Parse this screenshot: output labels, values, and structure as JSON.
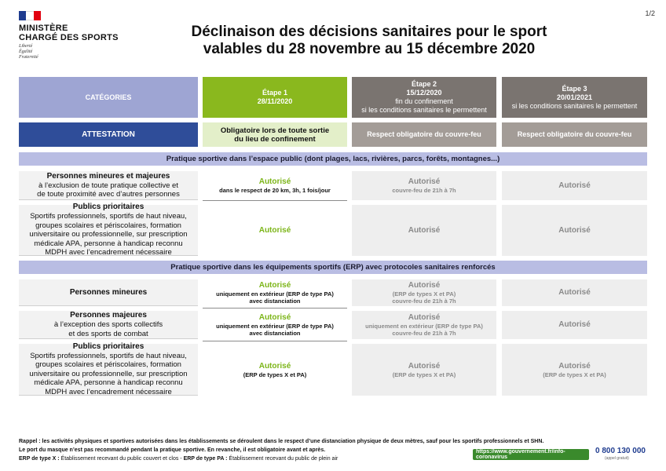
{
  "logo": {
    "line1": "MINISTÈRE",
    "line2": "CHARGÉ DES SPORTS",
    "motto": [
      "Liberté",
      "Égalité",
      "Fraternité"
    ]
  },
  "page_number": "1/2",
  "title": {
    "line1": "Déclinaison des décisions sanitaires pour le sport",
    "line2": "valables du 28 novembre au 15 décembre 2020"
  },
  "colors": {
    "categories_bg": "#9ea5d3",
    "etape1_bg": "#8ab81e",
    "etape_grey_bg": "#7a7470",
    "attestation_bg": "#2f4d99",
    "attestation1_bg": "#e3efc9",
    "attestation_grey_bg": "#a39c97"
  },
  "header": {
    "categories": "CATÉGORIES",
    "etape1": {
      "title": "Étape 1",
      "date": "28/11/2020"
    },
    "etape2": {
      "title": "Étape 2",
      "date": "15/12/2020",
      "line1": "fin du confinement",
      "line2": "si les conditions sanitaires le permettent"
    },
    "etape3": {
      "title": "Étape 3",
      "date": "20/01/2021",
      "line1": "si les conditions sanitaires le permettent"
    }
  },
  "attestation": {
    "label": "ATTESTATION",
    "etape1": [
      "Obligatoire lors de toute sortie",
      "du lieu de confinement"
    ],
    "etape2": "Respect obligatoire du couvre-feu",
    "etape3": "Respect obligatoire du couvre-feu"
  },
  "section1": {
    "title": "Pratique sportive dans l’espace public (dont plages, lacs, rivières, parcs, forêts, montagnes...)",
    "rows": [
      {
        "title": "Personnes mineures et majeures",
        "desc": [
          "à l’exclusion de toute pratique collective et",
          "de toute proximité avec d’autres personnes"
        ],
        "e1": {
          "status": "Autorisé",
          "notes": [
            "dans le respect de 20 km, 3h, 1 fois/jour"
          ]
        },
        "e2": {
          "status": "Autorisé",
          "notes": [
            "couvre-feu de 21h à 7h"
          ]
        },
        "e3": {
          "status": "Autorisé",
          "notes": []
        }
      },
      {
        "title": "Publics prioritaires",
        "desc": [
          "Sportifs professionnels, sportifs de haut niveau,",
          "groupes scolaires et périscolaires, formation",
          "universitaire ou professionnelle, sur prescription",
          "médicale APA, personne à handicap reconnu",
          "MDPH avec l’encadrement nécessaire"
        ],
        "e1": {
          "status": "Autorisé",
          "notes": []
        },
        "e2": {
          "status": "Autorisé",
          "notes": []
        },
        "e3": {
          "status": "Autorisé",
          "notes": []
        }
      }
    ]
  },
  "section2": {
    "title": "Pratique sportive dans les équipements sportifs (ERP) avec protocoles sanitaires renforcés",
    "rows": [
      {
        "title": "Personnes mineures",
        "desc": [],
        "e1": {
          "status": "Autorisé",
          "notes": [
            "uniquement en extérieur (ERP de type PA)",
            "avec distanciation"
          ]
        },
        "e2": {
          "status": "Autorisé",
          "notes": [
            "(ERP de types X et PA)",
            "couvre-feu de 21h à 7h"
          ]
        },
        "e3": {
          "status": "Autorisé",
          "notes": []
        }
      },
      {
        "title": "Personnes majeures",
        "desc": [
          "à l’exception des sports collectifs",
          "et des sports de combat"
        ],
        "e1": {
          "status": "Autorisé",
          "notes": [
            "uniquement en extérieur (ERP de type PA)",
            "avec distanciation"
          ]
        },
        "e2": {
          "status": "Autorisé",
          "notes": [
            "uniquement en extérieur (ERP de type PA)",
            "couvre-feu de 21h à 7h"
          ]
        },
        "e3": {
          "status": "Autorisé",
          "notes": []
        }
      },
      {
        "title": "Publics prioritaires",
        "desc": [
          "Sportifs professionnels, sportifs de haut niveau,",
          "groupes scolaires et périscolaires, formation",
          "universitaire ou professionnelle, sur prescription",
          "médicale APA, personne à handicap reconnu",
          "MDPH avec l’encadrement nécessaire"
        ],
        "e1": {
          "status": "Autorisé",
          "notes": [
            "(ERP de types X et PA)"
          ]
        },
        "e2": {
          "status": "Autorisé",
          "notes": [
            "(ERP de types X et PA)"
          ]
        },
        "e3": {
          "status": "Autorisé",
          "notes": [
            "(ERP de types X et PA)"
          ]
        }
      }
    ]
  },
  "footer": {
    "line1": "Rappel : les activités physiques et sportives autorisées dans les établissements se déroulent dans le respect d’une distanciation physique de deux mètres, sauf pour les sportifs professionnels et SHN.",
    "line2": "Le port du masque n’est pas recommandé pendant la pratique sportive. En revanche, il est obligatoire avant et après.",
    "line3_b1": "ERP de type X :",
    "line3_t1": " Établissement recevant du public couvert et clos - ",
    "line3_b2": "ERP de type PA :",
    "line3_t2": " Établissement recevant du public de plein air"
  },
  "gov_link": "https://www.gouvernement.fr/info-coronavirus",
  "phone": "0 800 130 000",
  "phone_sub": "(appel gratuit)"
}
